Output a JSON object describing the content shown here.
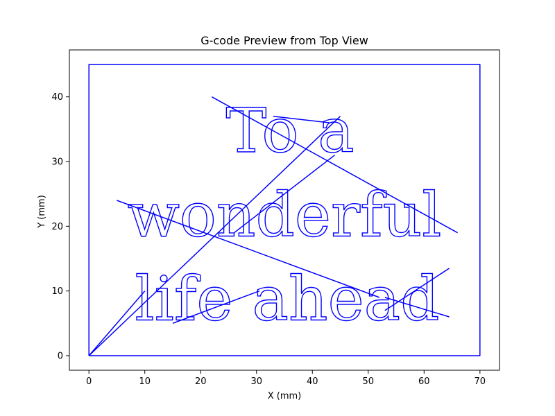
{
  "chart_data": {
    "type": "line",
    "title": "G-code Preview from Top View",
    "xlabel": "X (mm)",
    "ylabel": "Y (mm)",
    "xlim": [
      -3.5,
      73.5
    ],
    "ylim": [
      -2.25,
      47.25
    ],
    "x_ticks": [
      0,
      10,
      20,
      30,
      40,
      50,
      60,
      70
    ],
    "y_ticks": [
      0,
      10,
      20,
      30,
      40
    ],
    "grid": false,
    "line_color": "#0000ff",
    "series": [
      {
        "values": [
          {
            "x": 0,
            "y": 0
          },
          {
            "x": 0,
            "y": 45
          },
          {
            "x": 70,
            "y": 45
          },
          {
            "x": 70,
            "y": 0
          },
          {
            "x": 0,
            "y": 0
          }
        ]
      },
      {
        "values": [
          {
            "x": 0,
            "y": 0
          },
          {
            "x": 10,
            "y": 10
          }
        ]
      },
      {
        "values": [
          {
            "x": 0,
            "y": 0
          },
          {
            "x": 45,
            "y": 37
          }
        ]
      },
      {
        "values": [
          {
            "x": 22,
            "y": 40
          },
          {
            "x": 66,
            "y": 19
          }
        ]
      },
      {
        "values": [
          {
            "x": 5,
            "y": 24
          },
          {
            "x": 52,
            "y": 9
          }
        ]
      },
      {
        "values": [
          {
            "x": 15,
            "y": 5
          },
          {
            "x": 30.5,
            "y": 10
          }
        ]
      },
      {
        "values": [
          {
            "x": 33,
            "y": 37
          },
          {
            "x": 43,
            "y": 36
          }
        ]
      },
      {
        "values": [
          {
            "x": 53,
            "y": 9
          },
          {
            "x": 64.5,
            "y": 6
          }
        ]
      },
      {
        "values": [
          {
            "x": 53,
            "y": 7
          },
          {
            "x": 64.5,
            "y": 13.5
          }
        ]
      },
      {
        "values": [
          {
            "x": 26,
            "y": 19
          },
          {
            "x": 44,
            "y": 31
          }
        ]
      }
    ],
    "text_lines": [
      {
        "text": "To a",
        "x": 36,
        "y": 31.5
      },
      {
        "text": "wonderful",
        "x": 35,
        "y": 18.5
      },
      {
        "text": "life ahead",
        "x": 35.5,
        "y": 5.5
      }
    ]
  }
}
